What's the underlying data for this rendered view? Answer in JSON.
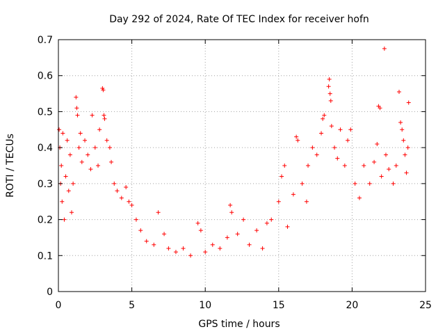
{
  "chart_data": {
    "type": "scatter",
    "title": "Day 292 of 2024, Rate Of TEC Index for receiver hofn",
    "xlabel": "GPS time / hours",
    "ylabel": "ROTI / TECUs",
    "xlim": [
      0,
      25
    ],
    "ylim": [
      0,
      0.7
    ],
    "xticks": [
      "0",
      "5",
      "10",
      "15",
      "20",
      "25"
    ],
    "yticks": [
      "0",
      "0.1",
      "0.2",
      "0.3",
      "0.4",
      "0.5",
      "0.6",
      "0.7"
    ],
    "grid": true,
    "grid_style": "dotted",
    "marker": "plus",
    "series": [
      {
        "color": "#ff0000",
        "points": [
          [
            0.05,
            0.45
          ],
          [
            0.1,
            0.4
          ],
          [
            0.2,
            0.35
          ],
          [
            0.15,
            0.3
          ],
          [
            0.3,
            0.44
          ],
          [
            0.25,
            0.25
          ],
          [
            0.4,
            0.2
          ],
          [
            0.5,
            0.32
          ],
          [
            0.6,
            0.42
          ],
          [
            0.7,
            0.28
          ],
          [
            0.8,
            0.38
          ],
          [
            0.9,
            0.22
          ],
          [
            1.0,
            0.3
          ],
          [
            1.2,
            0.54
          ],
          [
            1.25,
            0.51
          ],
          [
            1.3,
            0.49
          ],
          [
            1.5,
            0.44
          ],
          [
            1.4,
            0.4
          ],
          [
            1.6,
            0.36
          ],
          [
            1.8,
            0.42
          ],
          [
            2.0,
            0.38
          ],
          [
            2.2,
            0.34
          ],
          [
            2.3,
            0.49
          ],
          [
            2.5,
            0.4
          ],
          [
            2.7,
            0.35
          ],
          [
            2.8,
            0.45
          ],
          [
            3.0,
            0.565
          ],
          [
            3.05,
            0.56
          ],
          [
            3.1,
            0.49
          ],
          [
            3.15,
            0.48
          ],
          [
            3.3,
            0.42
          ],
          [
            3.5,
            0.4
          ],
          [
            3.6,
            0.36
          ],
          [
            3.8,
            0.3
          ],
          [
            4.0,
            0.28
          ],
          [
            4.3,
            0.26
          ],
          [
            4.6,
            0.29
          ],
          [
            4.8,
            0.25
          ],
          [
            5.0,
            0.24
          ],
          [
            5.3,
            0.2
          ],
          [
            5.6,
            0.17
          ],
          [
            6.0,
            0.14
          ],
          [
            6.5,
            0.13
          ],
          [
            6.8,
            0.22
          ],
          [
            7.2,
            0.16
          ],
          [
            7.5,
            0.12
          ],
          [
            8.0,
            0.11
          ],
          [
            8.5,
            0.12
          ],
          [
            9.0,
            0.1
          ],
          [
            9.5,
            0.19
          ],
          [
            9.7,
            0.17
          ],
          [
            10.0,
            0.11
          ],
          [
            10.5,
            0.13
          ],
          [
            11.0,
            0.12
          ],
          [
            11.5,
            0.15
          ],
          [
            11.7,
            0.24
          ],
          [
            11.8,
            0.22
          ],
          [
            12.2,
            0.16
          ],
          [
            12.6,
            0.2
          ],
          [
            13.0,
            0.13
          ],
          [
            13.5,
            0.17
          ],
          [
            13.9,
            0.12
          ],
          [
            14.2,
            0.19
          ],
          [
            14.5,
            0.2
          ],
          [
            15.0,
            0.25
          ],
          [
            15.2,
            0.32
          ],
          [
            15.4,
            0.35
          ],
          [
            15.6,
            0.18
          ],
          [
            16.0,
            0.27
          ],
          [
            16.2,
            0.43
          ],
          [
            16.3,
            0.42
          ],
          [
            16.6,
            0.3
          ],
          [
            16.9,
            0.25
          ],
          [
            17.0,
            0.35
          ],
          [
            17.3,
            0.4
          ],
          [
            17.6,
            0.38
          ],
          [
            17.9,
            0.44
          ],
          [
            18.0,
            0.48
          ],
          [
            18.1,
            0.49
          ],
          [
            18.4,
            0.57
          ],
          [
            18.45,
            0.59
          ],
          [
            18.5,
            0.55
          ],
          [
            18.55,
            0.53
          ],
          [
            18.6,
            0.46
          ],
          [
            18.8,
            0.4
          ],
          [
            19.0,
            0.37
          ],
          [
            19.2,
            0.45
          ],
          [
            19.5,
            0.35
          ],
          [
            19.7,
            0.42
          ],
          [
            19.9,
            0.45
          ],
          [
            20.2,
            0.3
          ],
          [
            20.5,
            0.26
          ],
          [
            20.8,
            0.35
          ],
          [
            21.2,
            0.3
          ],
          [
            21.5,
            0.36
          ],
          [
            21.7,
            0.41
          ],
          [
            21.8,
            0.515
          ],
          [
            21.9,
            0.51
          ],
          [
            22.0,
            0.32
          ],
          [
            22.2,
            0.675
          ],
          [
            22.3,
            0.38
          ],
          [
            22.5,
            0.34
          ],
          [
            22.8,
            0.3
          ],
          [
            23.0,
            0.35
          ],
          [
            23.2,
            0.555
          ],
          [
            23.3,
            0.47
          ],
          [
            23.4,
            0.45
          ],
          [
            23.5,
            0.42
          ],
          [
            23.6,
            0.38
          ],
          [
            23.7,
            0.33
          ],
          [
            23.8,
            0.4
          ],
          [
            23.85,
            0.525
          ]
        ]
      }
    ]
  }
}
